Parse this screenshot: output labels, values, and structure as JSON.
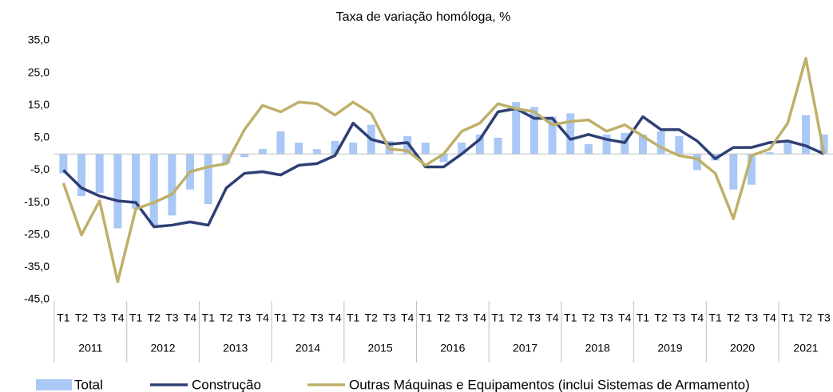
{
  "chart_data": {
    "type": "bar-line",
    "title": "Taxa de variação homóloga, %",
    "categories": [
      "T1",
      "T2",
      "T3",
      "T4",
      "T1",
      "T2",
      "T3",
      "T4",
      "T1",
      "T2",
      "T3",
      "T4",
      "T1",
      "T2",
      "T3",
      "T4",
      "T1",
      "T2",
      "T3",
      "T4",
      "T1",
      "T2",
      "T3",
      "T4",
      "T1",
      "T2",
      "T3",
      "T4",
      "T1",
      "T2",
      "T3",
      "T4",
      "T1",
      "T2",
      "T3",
      "T4",
      "T1",
      "T2",
      "T3",
      "T4",
      "T1",
      "T2",
      "T3"
    ],
    "years": [
      "2011",
      "2012",
      "2013",
      "2014",
      "2015",
      "2016",
      "2017",
      "2018",
      "2019",
      "2020",
      "2021"
    ],
    "ylim": [
      -45,
      35
    ],
    "yticks": [
      {
        "value": -45,
        "label": "-45,0"
      },
      {
        "value": -35,
        "label": "-35,0"
      },
      {
        "value": -25,
        "label": "-25,0"
      },
      {
        "value": -15,
        "label": "-15,0"
      },
      {
        "value": -5,
        "label": "-5,0"
      },
      {
        "value": 5,
        "label": "5,0"
      },
      {
        "value": 15,
        "label": "15,0"
      },
      {
        "value": 25,
        "label": "25,0"
      },
      {
        "value": 35,
        "label": "35,0"
      }
    ],
    "grid": false,
    "legend": "bottom",
    "series": [
      {
        "name": "Total",
        "kind": "bar",
        "color": "#a9c8f5",
        "values": [
          -6,
          -13,
          -12,
          -23,
          -17,
          -22,
          -19,
          -11,
          -15.5,
          -3,
          -1,
          1.5,
          7,
          3.5,
          1.5,
          4,
          3.5,
          9,
          4,
          5.5,
          3.5,
          -2.5,
          3.5,
          6,
          5,
          16,
          14.5,
          11.5,
          12.5,
          3,
          6,
          6.5,
          6,
          7,
          5.5,
          -5,
          -2,
          -11,
          -9.5,
          0.5,
          4,
          12,
          6
        ]
      },
      {
        "name": "Construção",
        "kind": "line",
        "color": "#2e3f74",
        "values": [
          -5,
          -10.5,
          -13,
          -14.5,
          -15,
          -22.5,
          -22,
          -21,
          -22,
          -10.5,
          -6,
          -5.5,
          -6.5,
          -3.5,
          -3,
          -0.5,
          9.5,
          4.5,
          3,
          3.5,
          -4,
          -4,
          0,
          4.5,
          13,
          14,
          11,
          11,
          4.5,
          6,
          4.5,
          3.5,
          11.5,
          7.5,
          7.5,
          4,
          -1.5,
          2,
          2,
          3.5,
          4,
          2.5,
          0
        ]
      },
      {
        "name": "Outras Máquinas e Equipamentos (inclui Sistemas de Armamento)",
        "kind": "line",
        "color": "#bfb06a",
        "values": [
          -9,
          -25,
          -14.5,
          -39.5,
          -17,
          -15,
          -12.5,
          -5.5,
          -4,
          -3,
          7.5,
          15,
          13,
          16,
          15.5,
          12,
          16,
          12.5,
          1.5,
          1,
          -3.5,
          0,
          7,
          9.5,
          15.5,
          14,
          13,
          9,
          10,
          10.5,
          7,
          9,
          5.5,
          2,
          -0.5,
          -1.5,
          -6,
          -20,
          -0.5,
          1.5,
          9.5,
          29.5,
          0
        ]
      }
    ]
  }
}
